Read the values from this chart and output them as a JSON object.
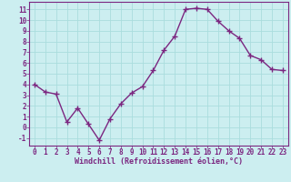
{
  "x": [
    0,
    1,
    2,
    3,
    4,
    5,
    6,
    7,
    8,
    9,
    10,
    11,
    12,
    13,
    14,
    15,
    16,
    17,
    18,
    19,
    20,
    21,
    22,
    23
  ],
  "y": [
    4,
    3.3,
    3.1,
    0.5,
    1.8,
    0.3,
    -1.2,
    0.8,
    2.2,
    3.2,
    3.8,
    5.3,
    7.2,
    8.5,
    11.0,
    11.1,
    11.0,
    9.9,
    9.0,
    8.3,
    6.7,
    6.3,
    5.4,
    5.3
  ],
  "line_color": "#7b2680",
  "marker": "+",
  "markersize": 4,
  "linewidth": 1.0,
  "background_color": "#cceef0",
  "grid_color": "#aadddd",
  "xlabel": "Windchill (Refroidissement éolien,°C)",
  "ylabel": "",
  "title": "",
  "xlim": [
    -0.5,
    23.5
  ],
  "ylim": [
    -1.7,
    11.7
  ],
  "yticks": [
    -1,
    0,
    1,
    2,
    3,
    4,
    5,
    6,
    7,
    8,
    9,
    10,
    11
  ],
  "xticks": [
    0,
    1,
    2,
    3,
    4,
    5,
    6,
    7,
    8,
    9,
    10,
    11,
    12,
    13,
    14,
    15,
    16,
    17,
    18,
    19,
    20,
    21,
    22,
    23
  ],
  "tick_color": "#7b2680",
  "label_color": "#7b2680",
  "xlabel_fontsize": 6,
  "tick_fontsize": 5.5,
  "spine_color": "#7b2680"
}
